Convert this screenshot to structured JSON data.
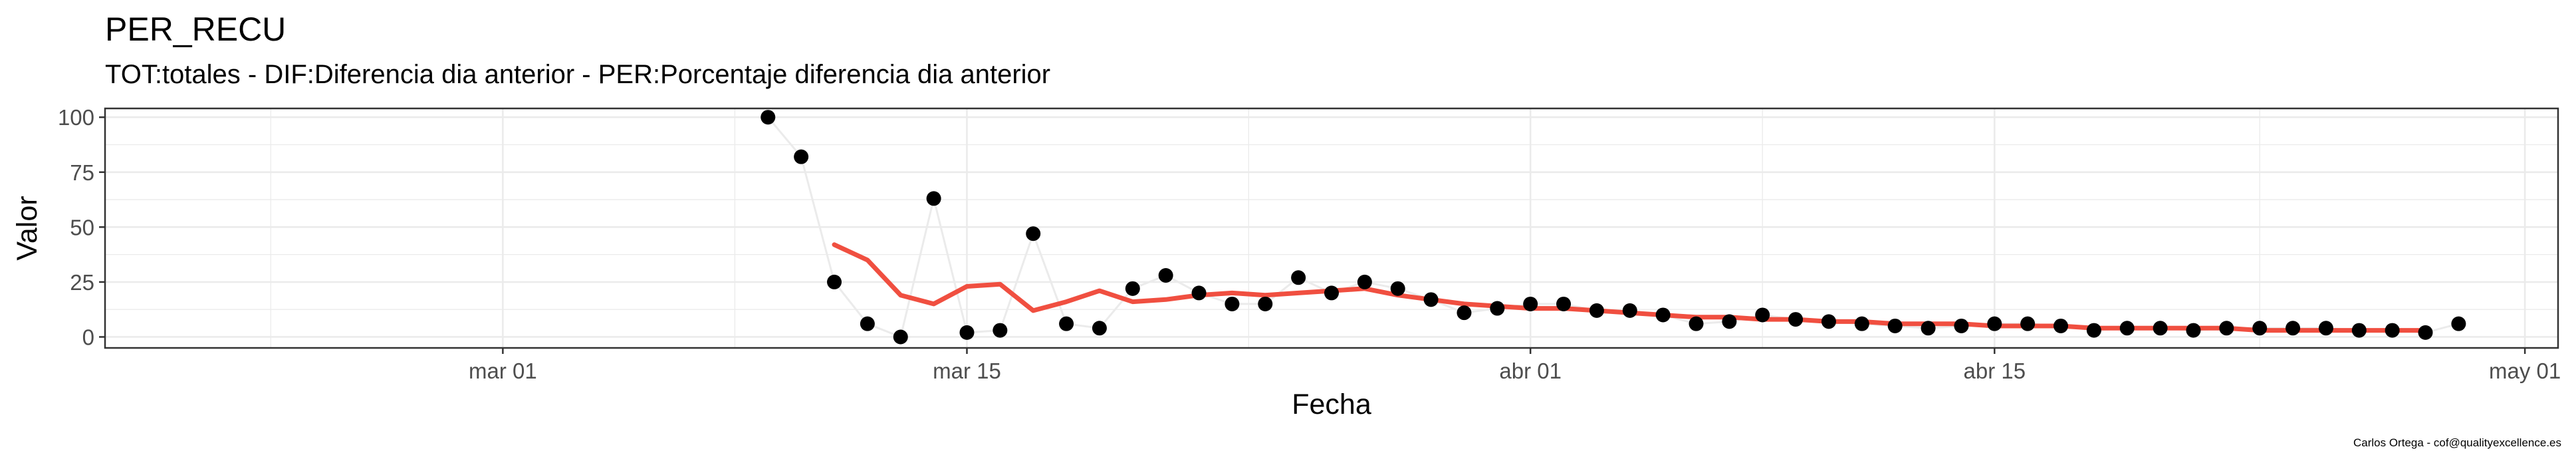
{
  "chart_data": {
    "type": "line",
    "title": "PER_RECU",
    "subtitle": "TOT:totales - DIF:Diferencia dia anterior - PER:Porcentaje diferencia dia anterior",
    "xlabel": "Fecha",
    "ylabel": "Valor",
    "caption": "Carlos Ortega - cof@qualityexcellence.es",
    "x_ticks": [
      {
        "date": "2020-03-01",
        "label": "mar 01"
      },
      {
        "date": "2020-03-15",
        "label": "mar 15"
      },
      {
        "date": "2020-04-01",
        "label": "abr 01"
      },
      {
        "date": "2020-04-15",
        "label": "abr 15"
      },
      {
        "date": "2020-05-01",
        "label": "may 01"
      }
    ],
    "y_ticks": [
      0,
      25,
      50,
      75,
      100
    ],
    "xlim": [
      "2020-02-18",
      "2020-05-02"
    ],
    "ylim": [
      -5,
      104
    ],
    "grid": true,
    "colors": {
      "points": "#000000",
      "thin_line": "#ebebeb",
      "smooth_line": "#f04f40",
      "grid": "#ebebeb",
      "panel_border": "#333333"
    },
    "series": [
      {
        "kind": "points-with-thin-line",
        "x": [
          "2020-03-09",
          "2020-03-10",
          "2020-03-11",
          "2020-03-12",
          "2020-03-13",
          "2020-03-14",
          "2020-03-15",
          "2020-03-16",
          "2020-03-17",
          "2020-03-18",
          "2020-03-19",
          "2020-03-20",
          "2020-03-21",
          "2020-03-22",
          "2020-03-23",
          "2020-03-24",
          "2020-03-25",
          "2020-03-26",
          "2020-03-27",
          "2020-03-28",
          "2020-03-29",
          "2020-03-30",
          "2020-03-31",
          "2020-04-01",
          "2020-04-02",
          "2020-04-03",
          "2020-04-04",
          "2020-04-05",
          "2020-04-06",
          "2020-04-07",
          "2020-04-08",
          "2020-04-09",
          "2020-04-10",
          "2020-04-11",
          "2020-04-12",
          "2020-04-13",
          "2020-04-14",
          "2020-04-15",
          "2020-04-16",
          "2020-04-17",
          "2020-04-18",
          "2020-04-19",
          "2020-04-20",
          "2020-04-21",
          "2020-04-22",
          "2020-04-23",
          "2020-04-24",
          "2020-04-25",
          "2020-04-26",
          "2020-04-27",
          "2020-04-28",
          "2020-04-29"
        ],
        "y": [
          100,
          82,
          25,
          6,
          0,
          63,
          2,
          3,
          47,
          6,
          4,
          22,
          28,
          20,
          15,
          15,
          27,
          20,
          25,
          22,
          17,
          11,
          13,
          15,
          15,
          12,
          12,
          10,
          6,
          7,
          10,
          8,
          7,
          6,
          5,
          4,
          5,
          6,
          6,
          5,
          3,
          4,
          4,
          3,
          4,
          4,
          4,
          4,
          3,
          3,
          2,
          6
        ]
      },
      {
        "kind": "moving-average-line",
        "x": [
          "2020-03-11",
          "2020-03-12",
          "2020-03-13",
          "2020-03-14",
          "2020-03-15",
          "2020-03-16",
          "2020-03-17",
          "2020-03-18",
          "2020-03-19",
          "2020-03-20",
          "2020-03-21",
          "2020-03-22",
          "2020-03-23",
          "2020-03-24",
          "2020-03-25",
          "2020-03-26",
          "2020-03-27",
          "2020-03-28",
          "2020-03-29",
          "2020-03-30",
          "2020-03-31",
          "2020-04-01",
          "2020-04-02",
          "2020-04-03",
          "2020-04-04",
          "2020-04-05",
          "2020-04-06",
          "2020-04-07",
          "2020-04-08",
          "2020-04-09",
          "2020-04-10",
          "2020-04-11",
          "2020-04-12",
          "2020-04-13",
          "2020-04-14",
          "2020-04-15",
          "2020-04-16",
          "2020-04-17",
          "2020-04-18",
          "2020-04-19",
          "2020-04-20",
          "2020-04-21",
          "2020-04-22",
          "2020-04-23",
          "2020-04-24",
          "2020-04-25",
          "2020-04-26",
          "2020-04-27",
          "2020-04-28"
        ],
        "y": [
          42,
          35,
          19,
          15,
          23,
          24,
          12,
          16,
          21,
          16,
          17,
          19,
          20,
          19,
          20,
          21,
          22,
          19,
          17,
          15,
          14,
          13,
          13,
          12,
          11,
          10,
          9,
          9,
          8,
          8,
          7,
          7,
          6,
          6,
          6,
          5,
          5,
          5,
          4,
          4,
          4,
          4,
          4,
          3,
          3,
          3,
          3,
          3,
          3
        ]
      }
    ]
  }
}
